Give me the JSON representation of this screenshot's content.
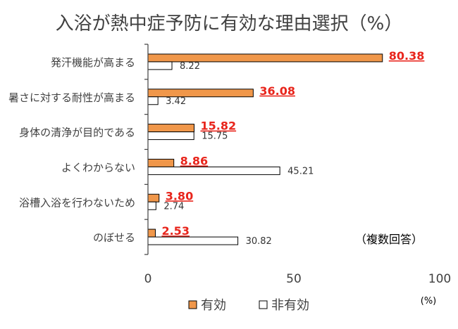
{
  "chart_data": {
    "type": "bar",
    "orientation": "horizontal",
    "title": "入浴が熱中症予防に有効な理由選択（%）",
    "categories": [
      "発汗機能が高まる",
      "暑さに対する耐性が高まる",
      "身体の清浄が目的である",
      "よくわからない",
      "浴槽入浴を行わないため",
      "のぼせる"
    ],
    "series": [
      {
        "name": "有効",
        "values": [
          80.38,
          36.08,
          15.82,
          8.86,
          3.8,
          2.53
        ],
        "value_labels": [
          "80.38",
          "36.08",
          "15.82",
          "8.86",
          "3.80",
          "2.53"
        ],
        "color": "#F0974A",
        "label_color": "#E8251C",
        "label_style": "bold-underline"
      },
      {
        "name": "非有効",
        "values": [
          8.22,
          3.42,
          15.75,
          45.21,
          2.74,
          30.82
        ],
        "value_labels": [
          "8.22",
          "3.42",
          "15.75",
          "45.21",
          "2.74",
          "30.82"
        ],
        "color": "#FFFFFF",
        "label_color": "#333333",
        "label_style": "normal"
      }
    ],
    "xlim": [
      0,
      100
    ],
    "xticks": [
      "0",
      "50",
      "100"
    ],
    "unit_label": "(%)",
    "annotation": "（複数回答）",
    "legend_position": "bottom",
    "grid": false
  }
}
